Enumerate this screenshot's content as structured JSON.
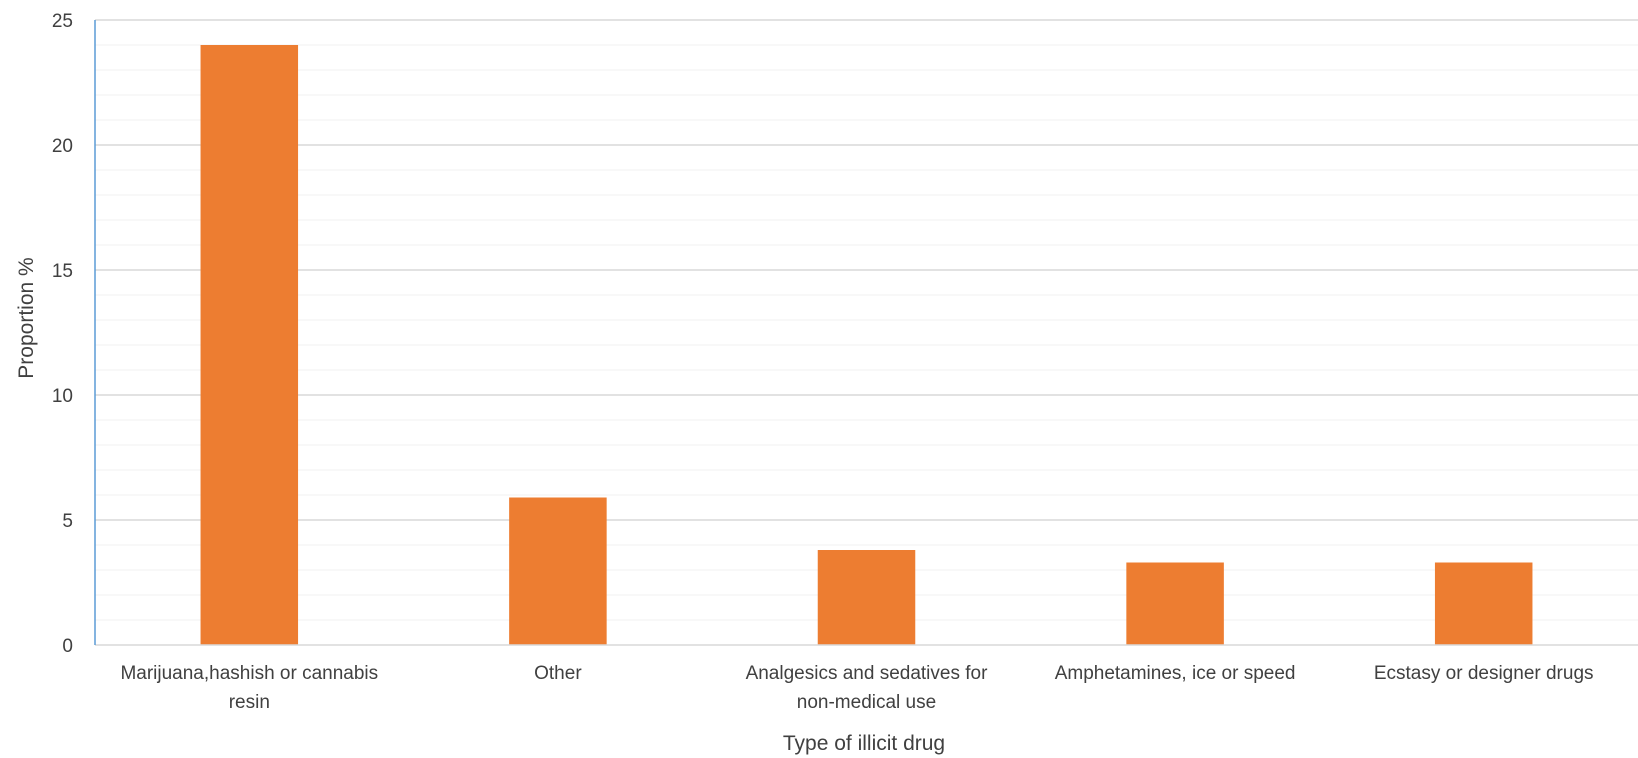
{
  "chart_data": {
    "type": "bar",
    "categories": [
      [
        "Marijuana,hashish or cannabis",
        "resin"
      ],
      [
        "Other"
      ],
      [
        "Analgesics and sedatives for",
        "non-medical use"
      ],
      [
        "Amphetamines, ice or speed"
      ],
      [
        "Ecstasy or designer drugs"
      ]
    ],
    "values": [
      24,
      5.9,
      3.8,
      3.3,
      3.3
    ],
    "xlabel": "Type of illicit drug",
    "ylabel": "Proportion %",
    "ylim": [
      0,
      25
    ],
    "yticks": [
      0,
      5,
      10,
      15,
      20,
      25
    ],
    "minor_step": 1,
    "grid": true,
    "colors": {
      "bar": "#ED7D31",
      "major_grid": "#D9D9D9",
      "minor_grid": "#F2F2F2",
      "y_axis": "#5B9BD5",
      "x_axis": "#D9D9D9"
    }
  }
}
